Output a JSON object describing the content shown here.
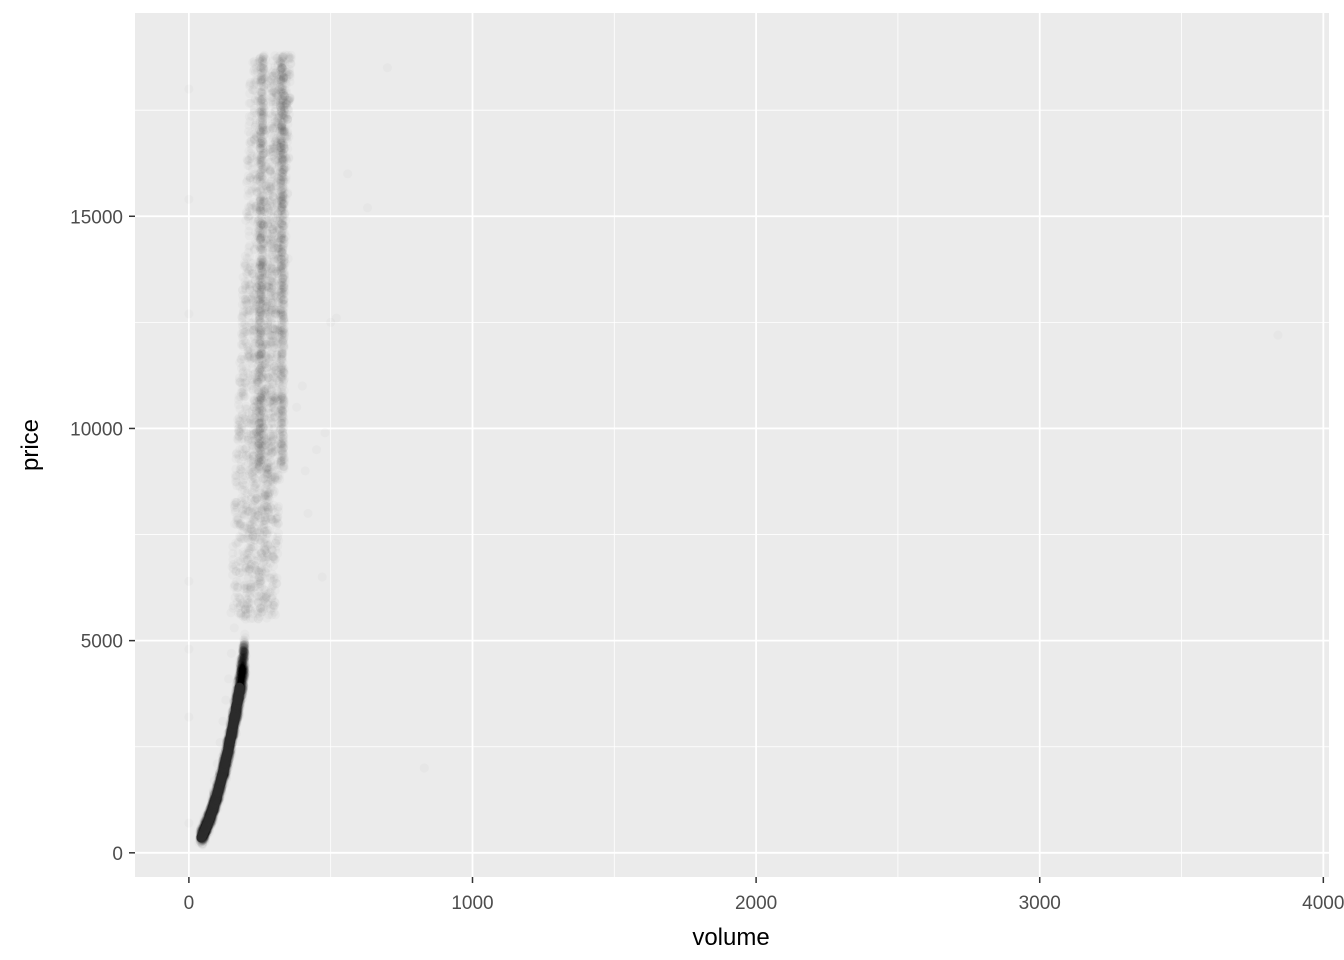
{
  "chart_data": {
    "type": "scatter",
    "xlabel": "volume",
    "ylabel": "price",
    "xlim": [
      -190,
      4020
    ],
    "ylim": [
      -570,
      19790
    ],
    "x_ticks": [
      0,
      1000,
      2000,
      3000,
      4000
    ],
    "y_ticks": [
      0,
      5000,
      10000,
      15000
    ],
    "x_tick_labels": [
      "0",
      "1000",
      "2000",
      "3000",
      "4000"
    ],
    "y_tick_labels": [
      "0",
      "5000",
      "10000",
      "15000"
    ],
    "grid": true,
    "legend": "none",
    "point_color": "#000000",
    "point_alpha": 0.02,
    "background_color": "#ebebeb",
    "grid_color": "#ffffff",
    "series": [
      {
        "points": [
          [
            40,
            450
          ],
          [
            50,
            600
          ],
          [
            60,
            800
          ],
          [
            70,
            1000
          ],
          [
            80,
            1300
          ],
          [
            90,
            1700
          ],
          [
            100,
            2100
          ],
          [
            110,
            2600
          ],
          [
            120,
            3100
          ],
          [
            130,
            3600
          ],
          [
            140,
            4100
          ],
          [
            150,
            4700
          ],
          [
            160,
            5300
          ],
          [
            170,
            5900
          ],
          [
            180,
            6600
          ],
          [
            190,
            7400
          ],
          [
            200,
            8200
          ],
          [
            210,
            9000
          ],
          [
            230,
            10500
          ],
          [
            250,
            12000
          ],
          [
            270,
            13500
          ],
          [
            290,
            15000
          ],
          [
            310,
            16500
          ],
          [
            330,
            18000
          ],
          [
            340,
            18800
          ],
          [
            0,
            700
          ],
          [
            0,
            3200
          ],
          [
            0,
            4800
          ],
          [
            0,
            6400
          ],
          [
            0,
            12700
          ],
          [
            0,
            15400
          ],
          [
            0,
            18000
          ],
          [
            330,
            12500
          ],
          [
            340,
            13500
          ],
          [
            330,
            15500
          ],
          [
            320,
            17000
          ],
          [
            350,
            14000
          ],
          [
            240,
            9000
          ],
          [
            250,
            10500
          ],
          [
            260,
            11500
          ],
          [
            270,
            13000
          ],
          [
            380,
            10500
          ],
          [
            400,
            11000
          ],
          [
            410,
            9000
          ],
          [
            420,
            8000
          ],
          [
            450,
            9500
          ],
          [
            500,
            12500
          ],
          [
            520,
            12600
          ],
          [
            480,
            9900
          ],
          [
            470,
            6500
          ],
          [
            560,
            16000
          ],
          [
            630,
            15200
          ],
          [
            700,
            18500
          ],
          [
            830,
            2000
          ],
          [
            3840,
            12200
          ]
        ]
      }
    ]
  }
}
